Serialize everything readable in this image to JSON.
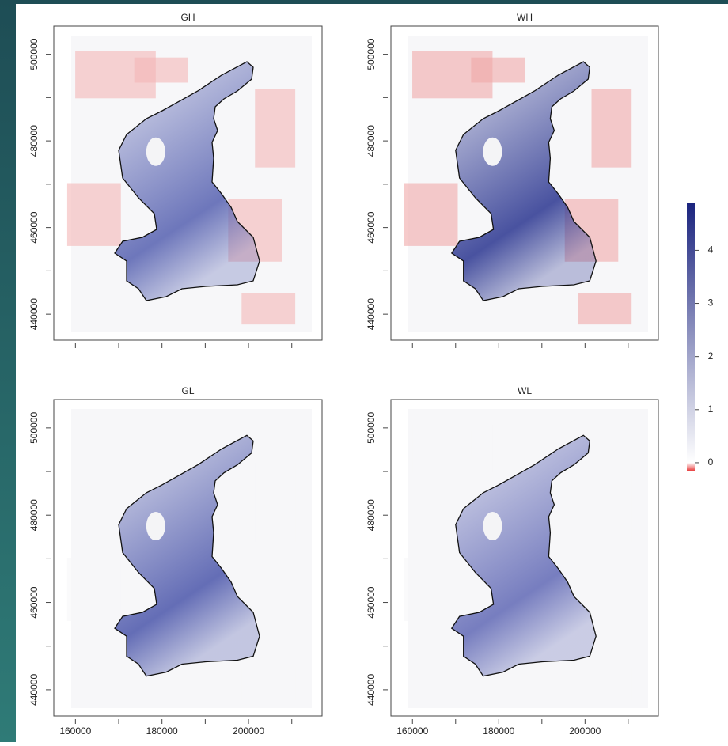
{
  "chart_data": [
    {
      "type": "raster",
      "title": "GH",
      "xlim": [
        155000,
        217000
      ],
      "ylim": [
        434000,
        506500
      ],
      "xticks": [],
      "xtick_marks": [
        160000,
        170000,
        180000,
        190000,
        200000,
        210000
      ],
      "yticks": [
        440000,
        460000,
        480000,
        500000
      ],
      "ytick_marks": [
        440000,
        450000,
        460000,
        470000,
        480000,
        490000,
        500000
      ],
      "land_color": "#f3b5b5",
      "lake_color": "#5560b0"
    },
    {
      "type": "raster",
      "title": "WH",
      "xlim": [
        155000,
        217000
      ],
      "ylim": [
        434000,
        506500
      ],
      "xticks": [],
      "xtick_marks": [
        160000,
        170000,
        180000,
        190000,
        200000,
        210000
      ],
      "yticks": [
        440000,
        460000,
        480000,
        500000
      ],
      "ytick_marks": [
        440000,
        450000,
        460000,
        470000,
        480000,
        490000,
        500000
      ],
      "land_color": "#f0a8a8",
      "lake_color": "#2a3590"
    },
    {
      "type": "raster",
      "title": "GL",
      "xlim": [
        155000,
        217000
      ],
      "ylim": [
        434000,
        506500
      ],
      "xticks": [
        160000,
        180000,
        200000
      ],
      "xtick_marks": [
        160000,
        170000,
        180000,
        190000,
        200000,
        210000
      ],
      "yticks": [
        440000,
        460000,
        480000,
        500000
      ],
      "ytick_marks": [
        440000,
        450000,
        460000,
        470000,
        480000,
        490000,
        500000
      ],
      "land_color": "#f6f6f8",
      "lake_color": "#4a55aa"
    },
    {
      "type": "raster",
      "title": "WL",
      "xlim": [
        155000,
        217000
      ],
      "ylim": [
        434000,
        506500
      ],
      "xticks": [
        160000,
        180000,
        200000
      ],
      "xtick_marks": [
        160000,
        170000,
        180000,
        190000,
        200000,
        210000
      ],
      "yticks": [
        440000,
        460000,
        480000,
        500000
      ],
      "ytick_marks": [
        440000,
        450000,
        460000,
        470000,
        480000,
        490000,
        500000
      ],
      "land_color": "#f6f6f8",
      "lake_color": "#6068b5"
    }
  ],
  "colorbar": {
    "lim": [
      -0.15,
      4.9
    ],
    "ticks": [
      0,
      1,
      2,
      3,
      4
    ],
    "colors": [
      "#e84040",
      "#ffffff",
      "#1a237e"
    ]
  }
}
